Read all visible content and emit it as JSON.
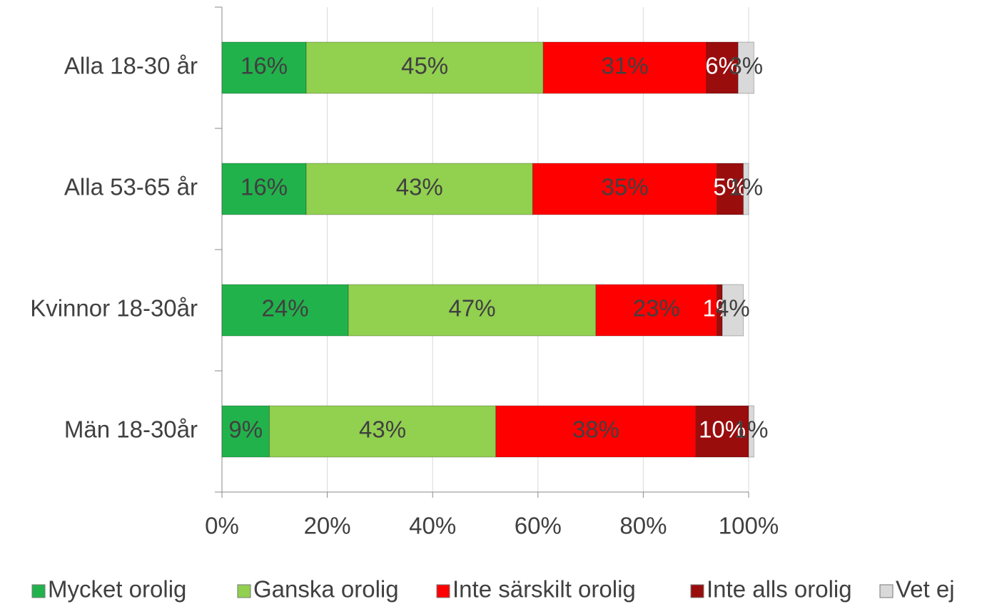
{
  "chart_data": {
    "type": "bar",
    "orientation": "horizontal",
    "stacked": true,
    "categories": [
      "Alla 18-30 år",
      "Alla 53-65 år",
      "Kvinnor 18-30år",
      "Män 18-30år"
    ],
    "series": [
      {
        "name": "Mycket orolig",
        "color": "#22b24c",
        "label_color": "#404040",
        "values": [
          16,
          16,
          24,
          9
        ],
        "value_labels": [
          "16%",
          "16%",
          "24%",
          "9%"
        ]
      },
      {
        "name": "Ganska orolig",
        "color": "#92d050",
        "label_color": "#404040",
        "values": [
          45,
          43,
          47,
          43
        ],
        "value_labels": [
          "45%",
          "43%",
          "47%",
          "43%"
        ]
      },
      {
        "name": "Inte särskilt orolig",
        "color": "#ff0000",
        "label_color": "#404040",
        "values": [
          31,
          35,
          23,
          38
        ],
        "value_labels": [
          "31%",
          "35%",
          "23%",
          "38%"
        ]
      },
      {
        "name": "Inte alls orolig",
        "color": "#9a0d0d",
        "label_color": "#ffffff",
        "values": [
          6,
          5,
          1,
          10
        ],
        "value_labels": [
          "6%",
          "5%",
          "1%",
          "10%"
        ]
      },
      {
        "name": "Vet ej",
        "color": "#d9d9d9",
        "label_color": "#404040",
        "values": [
          3,
          1,
          4,
          1
        ],
        "value_labels": [
          "3%",
          "1%",
          "4%",
          "1%"
        ]
      }
    ],
    "xlim": [
      0,
      100
    ],
    "xticks": [
      {
        "value": 0,
        "label": "0%"
      },
      {
        "value": 20,
        "label": "20%"
      },
      {
        "value": 40,
        "label": "40%"
      },
      {
        "value": 60,
        "label": "60%"
      },
      {
        "value": 80,
        "label": "80%"
      },
      {
        "value": 100,
        "label": "100%"
      }
    ],
    "grid": true,
    "legend": "bottom"
  }
}
